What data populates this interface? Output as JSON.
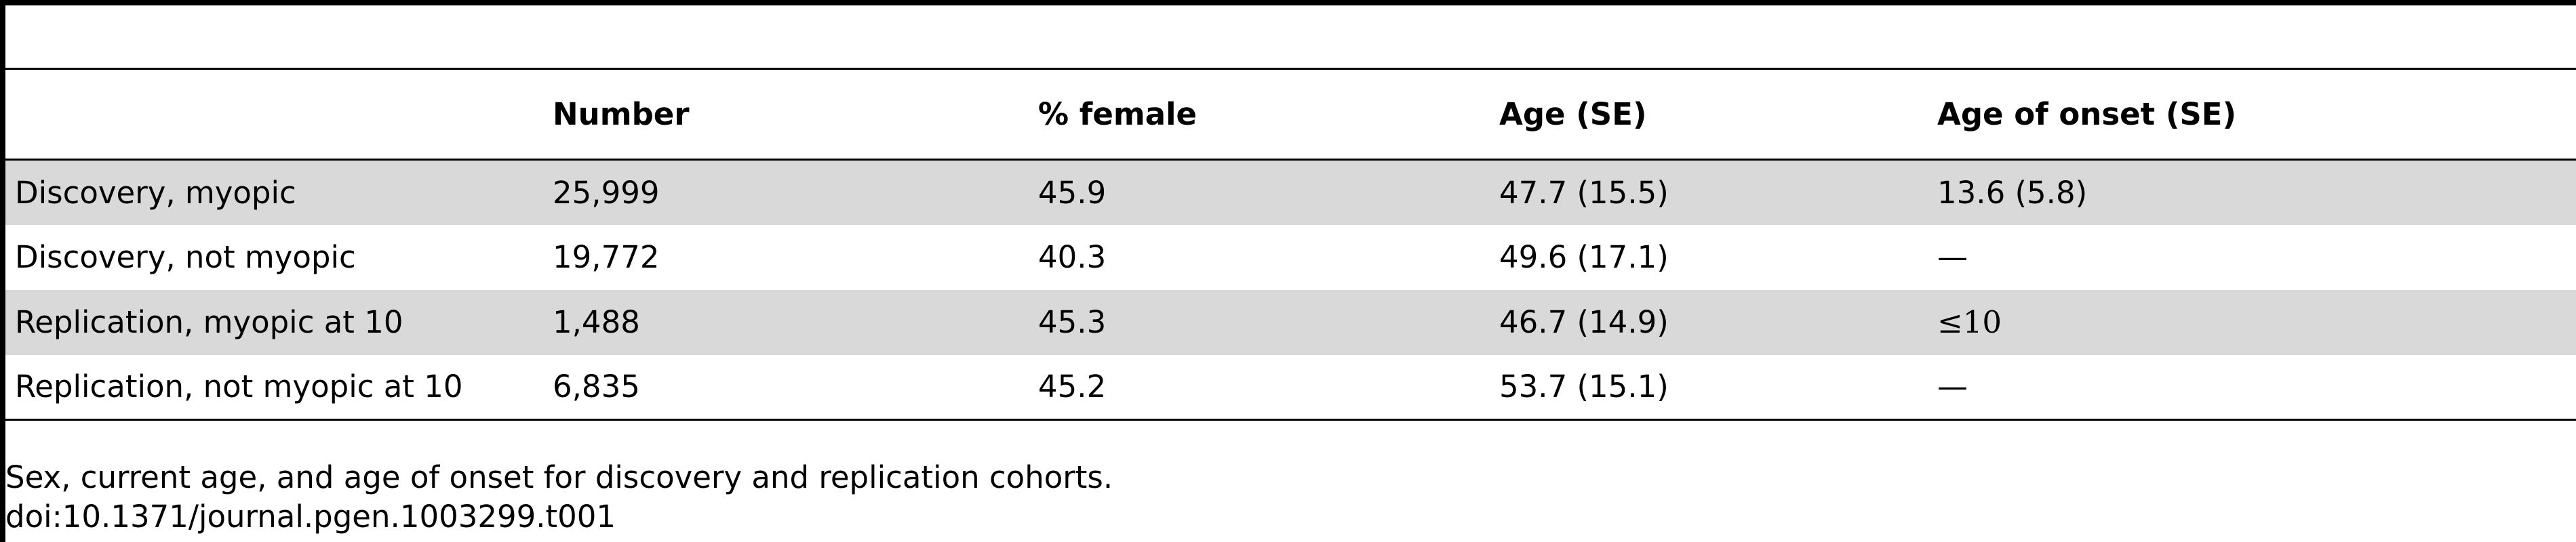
{
  "table": {
    "headers": [
      "",
      "Number",
      "% female",
      "Age (SE)",
      "Age of onset (SE)"
    ],
    "rows": [
      {
        "cohort": "Discovery, myopic",
        "number": "25,999",
        "pct_female": "45.9",
        "age": "47.7 (15.5)",
        "onset": "13.6 (5.8)"
      },
      {
        "cohort": "Discovery, not myopic",
        "number": "19,772",
        "pct_female": "40.3",
        "age": "49.6 (17.1)",
        "onset": "—"
      },
      {
        "cohort": "Replication, myopic at 10",
        "number": "1,488",
        "pct_female": "45.3",
        "age": "46.7 (14.9)",
        "onset": "≤10"
      },
      {
        "cohort": "Replication, not myopic at 10",
        "number": "6,835",
        "pct_female": "45.2",
        "age": "53.7 (15.1)",
        "onset": "—"
      }
    ]
  },
  "caption": {
    "text": "Sex, current age, and age of onset for discovery and replication cohorts.",
    "doi": "doi:10.1371/journal.pgen.1003299.t001"
  }
}
